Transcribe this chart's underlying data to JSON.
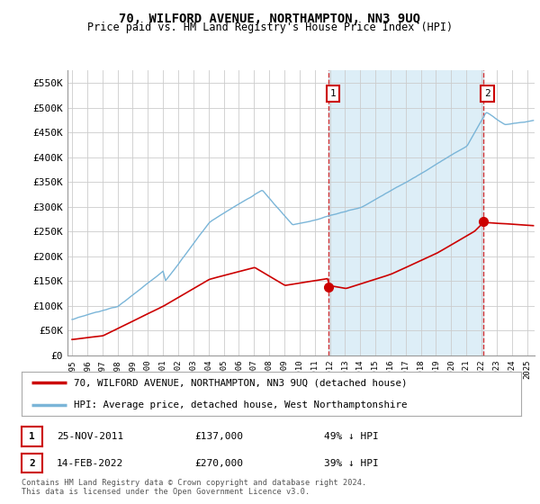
{
  "title": "70, WILFORD AVENUE, NORTHAMPTON, NN3 9UQ",
  "subtitle": "Price paid vs. HM Land Registry's House Price Index (HPI)",
  "legend_line1": "70, WILFORD AVENUE, NORTHAMPTON, NN3 9UQ (detached house)",
  "legend_line2": "HPI: Average price, detached house, West Northamptonshire",
  "footnote": "Contains HM Land Registry data © Crown copyright and database right 2024.\nThis data is licensed under the Open Government Licence v3.0.",
  "annotation1": {
    "label": "1",
    "date": "25-NOV-2011",
    "price": "£137,000",
    "pct": "49% ↓ HPI"
  },
  "annotation2": {
    "label": "2",
    "date": "14-FEB-2022",
    "price": "£270,000",
    "pct": "39% ↓ HPI"
  },
  "hpi_color": "#7ab5d8",
  "hpi_fill_color": "#ddeef7",
  "price_color": "#cc0000",
  "annotation_color": "#cc0000",
  "bg_color": "#ffffff",
  "grid_color": "#cccccc",
  "ylim": [
    0,
    575000
  ],
  "yticks": [
    0,
    50000,
    100000,
    150000,
    200000,
    250000,
    300000,
    350000,
    400000,
    450000,
    500000,
    550000
  ],
  "ytick_labels": [
    "£0",
    "£50K",
    "£100K",
    "£150K",
    "£200K",
    "£250K",
    "£300K",
    "£350K",
    "£400K",
    "£450K",
    "£500K",
    "£550K"
  ],
  "ann1_year": 2011.9,
  "ann1_y": 137000,
  "ann2_year": 2022.1,
  "ann2_y": 270000,
  "xlim_left": 1994.7,
  "xlim_right": 2025.5
}
